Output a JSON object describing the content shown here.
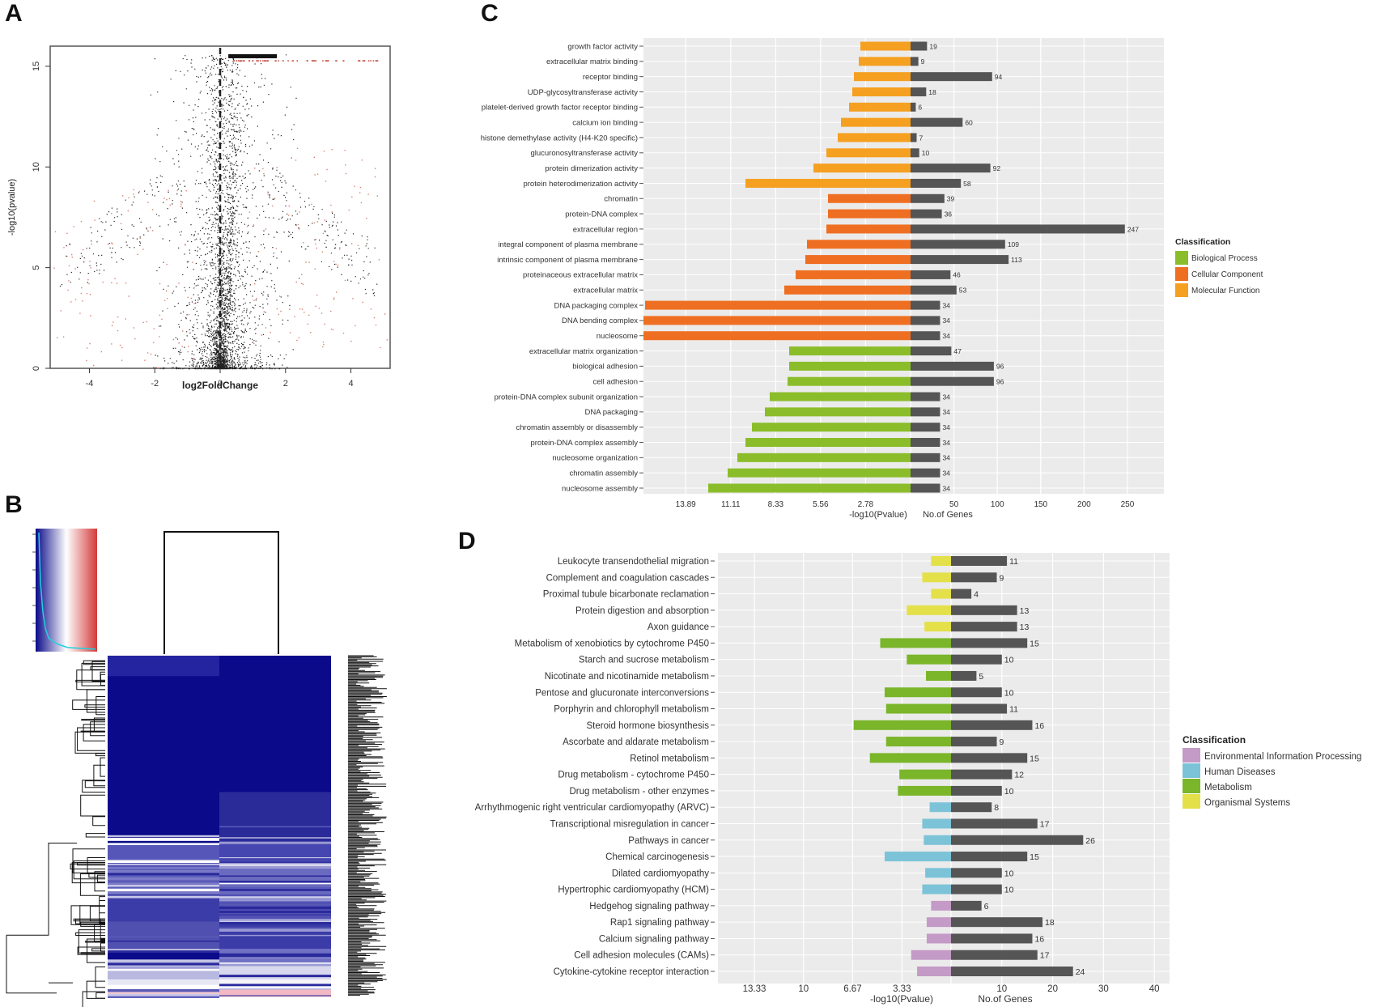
{
  "panels": {
    "a": "A",
    "b": "B",
    "c": "C",
    "d": "D"
  },
  "colors": {
    "biological": "#8bbd2a",
    "cellular": "#ef6f22",
    "molecular": "#f5a021",
    "env_info": "#c49ac6",
    "human_disease": "#7cc3d8",
    "metabolism": "#7ab52a",
    "organismal": "#e4e04a",
    "genes": "#555555",
    "panel_bg": "#ebebeb",
    "heat_dark": "#0a0a8a",
    "heat_mid": "#3c3ca8",
    "heat_light": "#f2c8d0"
  },
  "chart_data": [
    {
      "id": "volcano",
      "type": "scatter",
      "title": "",
      "xlabel": "log2FoldChange",
      "ylabel": "-log10(pvalue)",
      "xlim": [
        -5.2,
        5.2
      ],
      "ylim": [
        0,
        16
      ],
      "xticks": [
        "-4",
        "-2",
        "0",
        "2",
        "4"
      ],
      "xtick_values": [
        -4,
        -2,
        0,
        2,
        4
      ],
      "yticks": [
        "0",
        "5",
        "10",
        "15"
      ],
      "ytick_values": [
        0,
        5,
        10,
        15
      ],
      "threshold_x": 0
    },
    {
      "id": "heatmap",
      "type": "heatmap",
      "columns": 2,
      "color_key_colors": [
        "#0a0a8a",
        "#ffffff",
        "#d33a3a"
      ]
    },
    {
      "id": "go",
      "type": "bar",
      "legend_title": "Classification",
      "legend": [
        "Biological Process",
        "Cellular Component",
        "Molecular Function"
      ],
      "xlabel_left": "-log10(Pvalue)",
      "xlabel_right": "No.of Genes",
      "left_ticks": [
        "13.89",
        "11.11",
        "8.33",
        "5.56",
        "2.78"
      ],
      "left_tick_values": [
        13.89,
        11.11,
        8.33,
        5.56,
        2.78
      ],
      "right_ticks": [
        "50",
        "100",
        "150",
        "200",
        "250"
      ],
      "right_tick_values": [
        50,
        100,
        150,
        200,
        250
      ],
      "left_max": 16.5,
      "right_max": 292,
      "categories": [
        "growth factor activity",
        "extracellular matrix binding",
        "receptor binding",
        "UDP-glycosyltransferase activity",
        "platelet-derived growth factor receptor binding",
        "calcium ion binding",
        "histone demethylase activity (H4-K20 specific)",
        "glucuronosyltransferase activity",
        "protein dimerization activity",
        "protein heterodimerization activity",
        "chromatin",
        "protein-DNA complex",
        "extracellular region",
        "integral component of plasma membrane",
        "intrinsic component of plasma membrane",
        "proteinaceous extracellular matrix",
        "extracellular matrix",
        "DNA packaging complex",
        "DNA bending complex",
        "nucleosome",
        "extracellular matrix organization",
        "biological adhesion",
        "cell adhesion",
        "protein-DNA complex subunit organization",
        "DNA packaging",
        "chromatin assembly or disassembly",
        "protein-DNA complex assembly",
        "nucleosome organization",
        "chromatin assembly",
        "nucleosome assembly"
      ],
      "class": [
        "MF",
        "MF",
        "MF",
        "MF",
        "MF",
        "MF",
        "MF",
        "MF",
        "MF",
        "MF",
        "CC",
        "CC",
        "CC",
        "CC",
        "CC",
        "CC",
        "CC",
        "CC",
        "CC",
        "CC",
        "BP",
        "BP",
        "BP",
        "BP",
        "BP",
        "BP",
        "BP",
        "BP",
        "BP",
        "BP"
      ],
      "neg_log_p": [
        3.1,
        3.2,
        3.5,
        3.6,
        3.8,
        4.3,
        4.5,
        5.2,
        6.0,
        10.2,
        5.1,
        5.1,
        5.2,
        6.4,
        6.5,
        7.1,
        7.8,
        16.4,
        16.5,
        16.5,
        7.5,
        7.5,
        7.6,
        8.7,
        9.0,
        9.8,
        10.2,
        10.7,
        11.3,
        12.5
      ],
      "genes": [
        19,
        9,
        94,
        18,
        6,
        60,
        7,
        10,
        92,
        58,
        39,
        36,
        247,
        109,
        113,
        46,
        53,
        34,
        34,
        34,
        47,
        96,
        96,
        34,
        34,
        34,
        34,
        34,
        34,
        34
      ],
      "gene_labels": [
        "19",
        "9",
        "94",
        "18",
        "6",
        "60",
        "7",
        "10",
        "92",
        "58",
        "39",
        "36",
        "247",
        "109",
        "113",
        "46",
        "53",
        "34",
        "34",
        "34",
        "47",
        "96",
        "96",
        "34",
        "34",
        "34",
        "34",
        "34",
        "34",
        "34"
      ]
    },
    {
      "id": "kegg",
      "type": "bar",
      "legend_title": "Classification",
      "legend": [
        "Environmental Information Processing",
        "Human Diseases",
        "Metabolism",
        "Organismal Systems"
      ],
      "xlabel_left": "-log10(Pvalue)",
      "xlabel_right": "No.of Genes",
      "left_ticks": [
        "13.33",
        "10",
        "6.67",
        "3.33"
      ],
      "left_tick_values": [
        13.33,
        10,
        6.67,
        3.33
      ],
      "right_ticks": [
        "10",
        "20",
        "30",
        "40"
      ],
      "right_tick_values": [
        10,
        20,
        30,
        40
      ],
      "left_max": 15.8,
      "right_max": 43,
      "categories": [
        "Leukocyte transendothelial migration",
        "Complement and coagulation cascades",
        "Proximal tubule bicarbonate reclamation",
        "Protein digestion and absorption",
        "Axon guidance",
        "Metabolism of xenobiotics by cytochrome P450",
        "Starch and sucrose metabolism",
        "Nicotinate and nicotinamide metabolism",
        "Pentose and glucuronate interconversions",
        "Porphyrin and chlorophyll metabolism",
        "Steroid hormone biosynthesis",
        "Ascorbate and aldarate metabolism",
        "Retinol metabolism",
        "Drug metabolism - cytochrome P450",
        "Drug metabolism - other enzymes",
        "Arrhythmogenic right ventricular cardiomyopathy (ARVC)",
        "Transcriptional misregulation in cancer",
        "Pathways in cancer",
        "Chemical carcinogenesis",
        "Dilated cardiomyopathy",
        "Hypertrophic cardiomyopathy (HCM)",
        "Hedgehog signaling pathway",
        "Rap1 signaling pathway",
        "Calcium signaling pathway",
        "Cell adhesion molecules (CAMs)",
        "Cytokine-cytokine receptor interaction"
      ],
      "class": [
        "OS",
        "OS",
        "OS",
        "OS",
        "OS",
        "ME",
        "ME",
        "ME",
        "ME",
        "ME",
        "ME",
        "ME",
        "ME",
        "ME",
        "ME",
        "HD",
        "HD",
        "HD",
        "HD",
        "HD",
        "HD",
        "EI",
        "EI",
        "EI",
        "EI",
        "EI"
      ],
      "neg_log_p": [
        1.35,
        1.95,
        1.35,
        3.0,
        1.8,
        4.8,
        3.0,
        1.7,
        4.5,
        4.4,
        6.6,
        4.4,
        5.5,
        3.5,
        3.6,
        1.45,
        1.95,
        1.85,
        4.5,
        1.75,
        1.95,
        1.35,
        1.65,
        1.65,
        2.7,
        2.3
      ],
      "genes": [
        11,
        9,
        4,
        13,
        13,
        15,
        10,
        5,
        10,
        11,
        16,
        9,
        15,
        12,
        10,
        8,
        17,
        26,
        15,
        10,
        10,
        6,
        18,
        16,
        17,
        24
      ],
      "gene_labels": [
        "11",
        "9",
        "4",
        "13",
        "13",
        "15",
        "10",
        "5",
        "10",
        "11",
        "16",
        "9",
        "15",
        "12",
        "10",
        "8",
        "17",
        "26",
        "15",
        "10",
        "10",
        "6",
        "18",
        "16",
        "17",
        "24"
      ]
    }
  ]
}
